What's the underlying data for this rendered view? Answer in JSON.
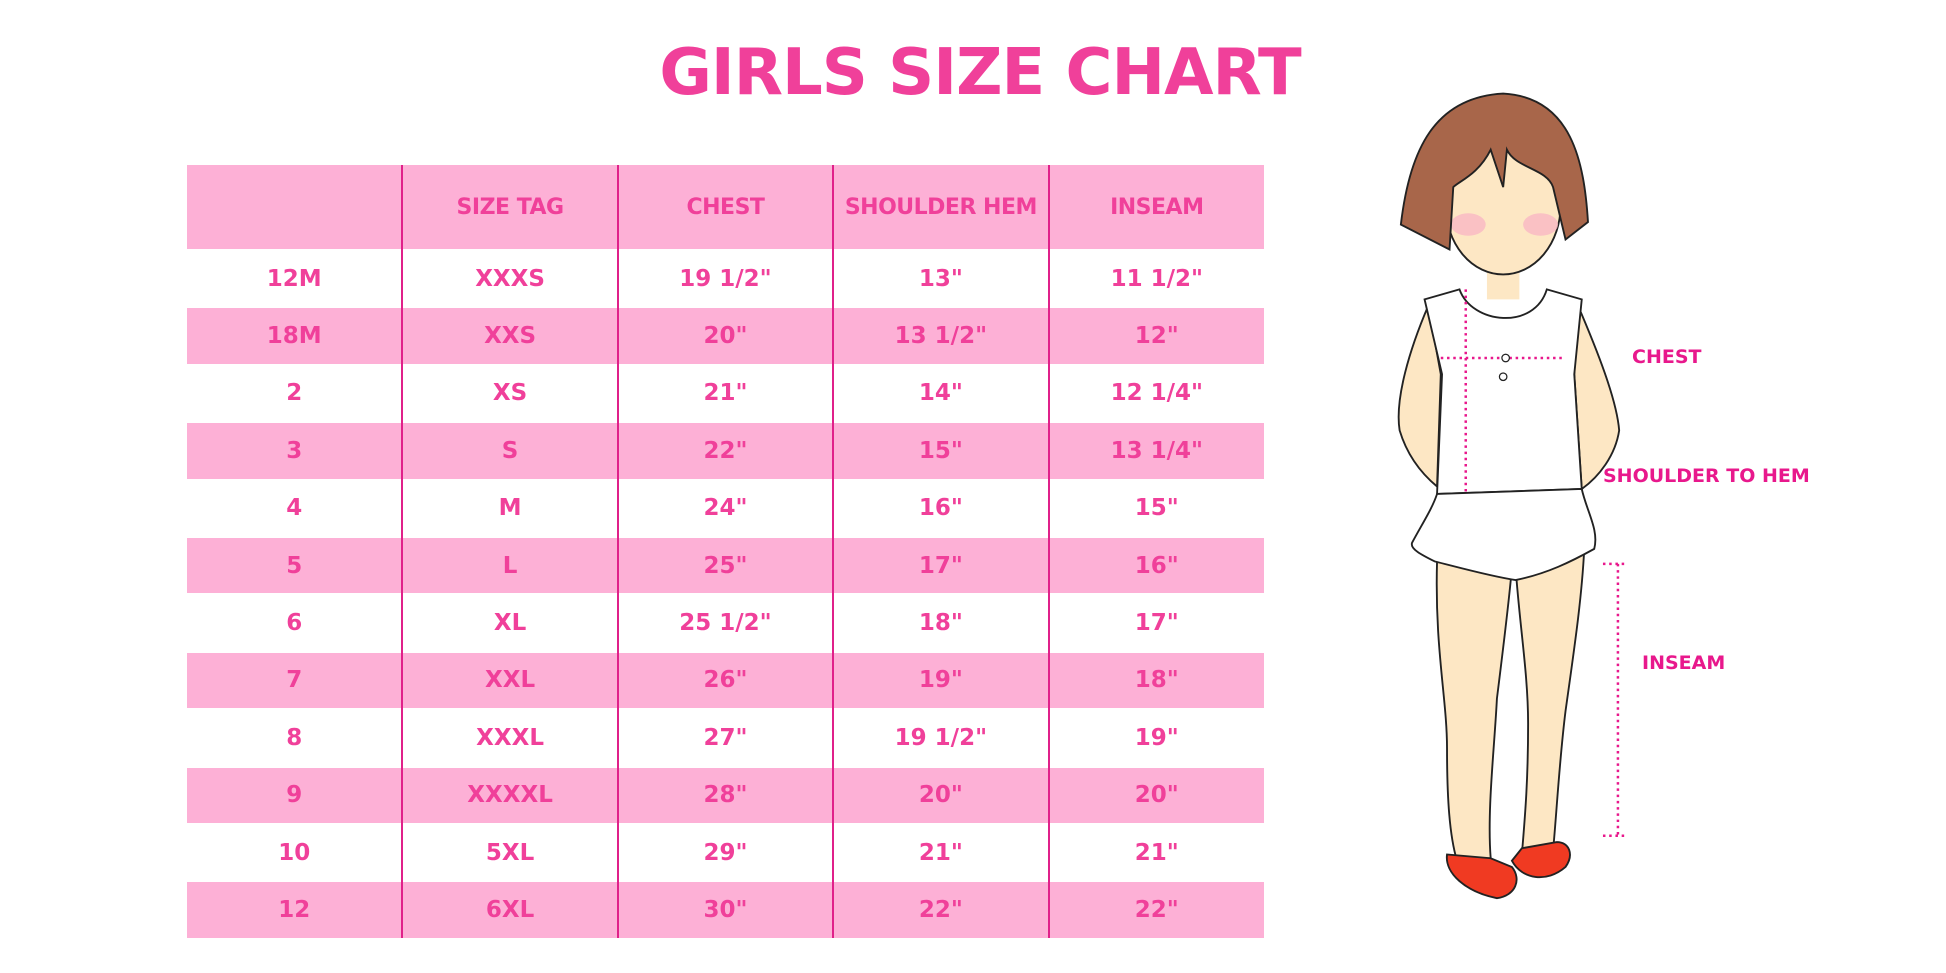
{
  "title": "GIRLS SIZE CHART",
  "colors": {
    "accent": "#f0409a",
    "row_pink": "#fdb0d6",
    "line": "#e0208a",
    "hair": "#a8664a",
    "skin": "#fde7c4",
    "shoe": "#f03a22"
  },
  "table": {
    "headers": [
      "",
      "SIZE TAG",
      "CHEST",
      "SHOULDER HEM",
      "INSEAM"
    ],
    "rows": [
      [
        "12M",
        "XXXS",
        "19 1/2\"",
        "13\"",
        "11 1/2\""
      ],
      [
        "18M",
        "XXS",
        "20\"",
        "13 1/2\"",
        "12\""
      ],
      [
        "2",
        "XS",
        "21\"",
        "14\"",
        "12 1/4\""
      ],
      [
        "3",
        "S",
        "22\"",
        "15\"",
        "13 1/4\""
      ],
      [
        "4",
        "M",
        "24\"",
        "16\"",
        "15\""
      ],
      [
        "5",
        "L",
        "25\"",
        "17\"",
        "16\""
      ],
      [
        "6",
        "XL",
        "25 1/2\"",
        "18\"",
        "17\""
      ],
      [
        "7",
        "XXL",
        "26\"",
        "19\"",
        "18\""
      ],
      [
        "8",
        "XXXL",
        "27\"",
        "19 1/2\"",
        "19\""
      ],
      [
        "9",
        "XXXXL",
        "28\"",
        "20\"",
        "20\""
      ],
      [
        "10",
        "5XL",
        "29\"",
        "21\"",
        "21\""
      ],
      [
        "12",
        "6XL",
        "30\"",
        "22\"",
        "22\""
      ]
    ]
  },
  "figure": {
    "labels": {
      "chest": "CHEST",
      "shoulder_to_hem": "SHOULDER TO HEM",
      "inseam": "INSEAM"
    }
  }
}
